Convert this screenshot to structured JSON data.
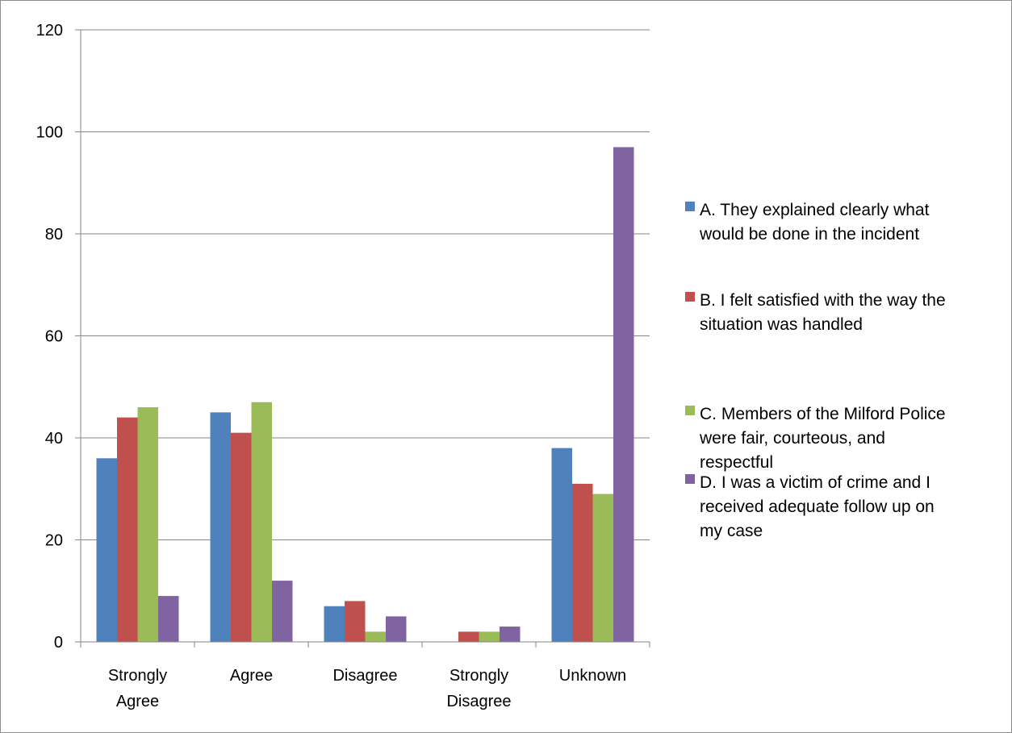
{
  "chart_data": {
    "type": "bar",
    "title": "",
    "xlabel": "",
    "ylabel": "",
    "ylim": [
      0,
      120
    ],
    "yticks": [
      0,
      20,
      40,
      60,
      80,
      100,
      120
    ],
    "grid": true,
    "legend_position": "right",
    "categories": [
      [
        "Strongly",
        "Agree"
      ],
      [
        "Agree"
      ],
      [
        "Disagree"
      ],
      [
        "Strongly",
        "Disagree"
      ],
      [
        "Unknown"
      ]
    ],
    "series": [
      {
        "name": [
          "A. They explained clearly what",
          "would be done in the incident"
        ],
        "color": "#4f81bd",
        "values": [
          36,
          45,
          7,
          0,
          38
        ]
      },
      {
        "name": [
          "B. I felt satisfied with the way the",
          "situation was handled"
        ],
        "color": "#c0504d",
        "values": [
          44,
          41,
          8,
          2,
          31
        ]
      },
      {
        "name": [
          "C. Members of the Milford Police",
          "were fair, courteous, and",
          "respectful"
        ],
        "color": "#9bbb59",
        "values": [
          46,
          47,
          2,
          2,
          29
        ]
      },
      {
        "name": [
          "D. I was a victim of crime and I",
          "received adequate follow up on",
          "my case"
        ],
        "color": "#8064a2",
        "values": [
          9,
          12,
          5,
          3,
          97
        ]
      }
    ]
  }
}
